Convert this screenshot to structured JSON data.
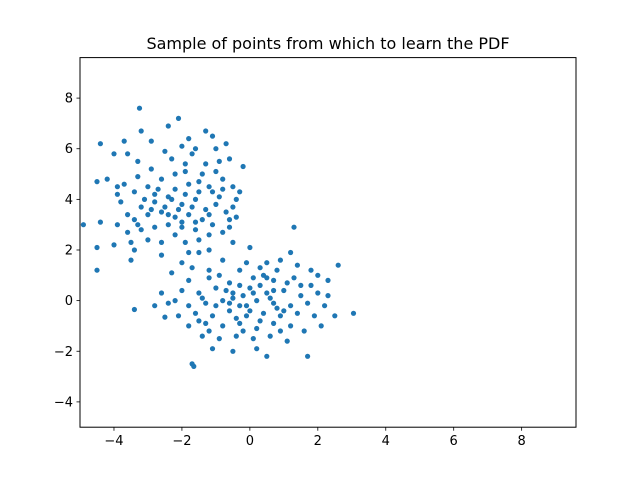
{
  "chart_data": {
    "type": "scatter",
    "title": "Sample of points from which to learn the PDF",
    "xlabel": "",
    "ylabel": "",
    "xlim": [
      -5,
      9.6
    ],
    "ylim": [
      -5,
      9.6
    ],
    "xticks": [
      -4,
      -2,
      0,
      2,
      4,
      6,
      8
    ],
    "yticks": [
      -4,
      -2,
      0,
      2,
      4,
      6,
      8
    ],
    "grid": false,
    "color": "#1f77b4",
    "series": [
      {
        "points": [
          [
            -3.25,
            7.6
          ],
          [
            -2.1,
            7.2
          ],
          [
            -3.2,
            6.7
          ],
          [
            -1.3,
            6.7
          ],
          [
            -1.8,
            6.4
          ],
          [
            -2.4,
            6.9
          ],
          [
            -4.4,
            6.2
          ],
          [
            -3.7,
            6.3
          ],
          [
            -2.9,
            6.3
          ],
          [
            -1.1,
            6.5
          ],
          [
            -0.2,
            5.3
          ],
          [
            -3.6,
            5.8
          ],
          [
            -4.0,
            5.8
          ],
          [
            -4.5,
            4.7
          ],
          [
            -3.3,
            5.5
          ],
          [
            -2.5,
            5.9
          ],
          [
            -1.7,
            5.8
          ],
          [
            -0.6,
            5.6
          ],
          [
            -0.5,
            4.5
          ],
          [
            -4.2,
            4.8
          ],
          [
            -3.9,
            4.2
          ],
          [
            -3.3,
            4.9
          ],
          [
            -2.9,
            5.2
          ],
          [
            -2.3,
            5.6
          ],
          [
            -1.9,
            5.4
          ],
          [
            -1.4,
            5.0
          ],
          [
            -1.0,
            5.1
          ],
          [
            -0.8,
            4.8
          ],
          [
            -3.8,
            3.9
          ],
          [
            -3.4,
            4.3
          ],
          [
            -3.0,
            4.5
          ],
          [
            -2.6,
            4.8
          ],
          [
            -2.2,
            4.4
          ],
          [
            -1.8,
            4.6
          ],
          [
            -1.5,
            4.3
          ],
          [
            -1.2,
            4.5
          ],
          [
            -0.9,
            4.1
          ],
          [
            -3.6,
            3.4
          ],
          [
            -3.2,
            3.7
          ],
          [
            -2.8,
            3.9
          ],
          [
            -2.4,
            4.1
          ],
          [
            -2.0,
            3.8
          ],
          [
            -1.6,
            4.0
          ],
          [
            -1.3,
            3.6
          ],
          [
            -1.0,
            3.8
          ],
          [
            -0.7,
            3.5
          ],
          [
            -4.4,
            3.1
          ],
          [
            -3.9,
            3.0
          ],
          [
            -3.4,
            3.2
          ],
          [
            -3.0,
            3.4
          ],
          [
            -2.6,
            3.5
          ],
          [
            -2.2,
            3.3
          ],
          [
            -1.8,
            3.4
          ],
          [
            -1.4,
            3.2
          ],
          [
            -1.1,
            3.0
          ],
          [
            -0.6,
            3.2
          ],
          [
            -0.4,
            3.3
          ],
          [
            -3.6,
            2.7
          ],
          [
            -3.2,
            2.8
          ],
          [
            -2.8,
            2.9
          ],
          [
            -2.4,
            3.0
          ],
          [
            -2.0,
            2.9
          ],
          [
            -1.6,
            2.8
          ],
          [
            -1.2,
            2.6
          ],
          [
            -0.8,
            2.7
          ],
          [
            -3.5,
            2.3
          ],
          [
            -3.0,
            2.4
          ],
          [
            -2.6,
            2.3
          ],
          [
            -2.2,
            2.6
          ],
          [
            -1.9,
            2.3
          ],
          [
            -1.5,
            2.4
          ],
          [
            -0.5,
            2.3
          ],
          [
            -4.0,
            2.2
          ],
          [
            -3.4,
            2.0
          ],
          [
            -2.6,
            1.8
          ],
          [
            -1.8,
            1.9
          ],
          [
            -1.2,
            2.0
          ],
          [
            -3.5,
            1.6
          ],
          [
            -2.8,
            4.2
          ],
          [
            -2.5,
            3.7
          ],
          [
            -2.1,
            3.6
          ],
          [
            -1.7,
            3.7
          ],
          [
            -1.9,
            4.2
          ],
          [
            -2.3,
            4.0
          ],
          [
            -2.7,
            4.4
          ],
          [
            -1.5,
            4.7
          ],
          [
            -1.1,
            4.3
          ],
          [
            -0.8,
            4.4
          ],
          [
            -3.1,
            4.0
          ],
          [
            -2.9,
            3.6
          ],
          [
            -2.4,
            3.4
          ],
          [
            -2.0,
            3.1
          ],
          [
            -1.6,
            3.1
          ],
          [
            -1.2,
            3.4
          ],
          [
            -2.2,
            5.0
          ],
          [
            -1.9,
            5.1
          ],
          [
            -1.3,
            5.4
          ],
          [
            -0.9,
            5.5
          ],
          [
            -4.9,
            3.0
          ],
          [
            -4.5,
            2.1
          ],
          [
            -4.5,
            1.2
          ],
          [
            -3.3,
            3.0
          ],
          [
            -0.3,
            4.3
          ],
          [
            -0.4,
            4.0
          ],
          [
            -0.5,
            3.7
          ],
          [
            -3.9,
            4.5
          ],
          [
            -3.7,
            4.6
          ],
          [
            -2.0,
            6.1
          ],
          [
            -1.6,
            6.0
          ],
          [
            -1.0,
            6.0
          ],
          [
            -0.7,
            6.2
          ],
          [
            -0.6,
            2.9
          ],
          [
            1.3,
            2.9
          ],
          [
            1.2,
            1.9
          ],
          [
            2.6,
            1.4
          ],
          [
            0.0,
            2.1
          ],
          [
            0.5,
            1.5
          ],
          [
            -0.8,
            1.6
          ],
          [
            -1.5,
            1.9
          ],
          [
            -2.0,
            1.5
          ],
          [
            -1.2,
            1.2
          ],
          [
            -0.3,
            1.2
          ],
          [
            0.3,
            1.3
          ],
          [
            0.8,
            1.2
          ],
          [
            1.4,
            1.4
          ],
          [
            2.0,
            1.0
          ],
          [
            -2.3,
            1.1
          ],
          [
            -1.8,
            0.8
          ],
          [
            -1.2,
            0.9
          ],
          [
            -0.6,
            0.7
          ],
          [
            0.1,
            0.9
          ],
          [
            0.7,
            0.8
          ],
          [
            1.3,
            0.9
          ],
          [
            1.8,
            0.6
          ],
          [
            2.3,
            0.8
          ],
          [
            -2.6,
            0.3
          ],
          [
            -2.0,
            0.4
          ],
          [
            -1.5,
            0.3
          ],
          [
            -1.0,
            0.5
          ],
          [
            -0.5,
            0.3
          ],
          [
            0.0,
            0.5
          ],
          [
            0.5,
            0.3
          ],
          [
            1.0,
            0.4
          ],
          [
            1.5,
            0.2
          ],
          [
            2.0,
            0.3
          ],
          [
            -2.4,
            -0.1
          ],
          [
            -1.8,
            -0.2
          ],
          [
            -1.3,
            -0.1
          ],
          [
            -0.8,
            0.0
          ],
          [
            -0.3,
            -0.2
          ],
          [
            0.2,
            0.0
          ],
          [
            0.7,
            -0.1
          ],
          [
            1.2,
            -0.2
          ],
          [
            1.7,
            -0.1
          ],
          [
            2.2,
            -0.2
          ],
          [
            -2.1,
            -0.6
          ],
          [
            -1.6,
            -0.5
          ],
          [
            -1.1,
            -0.6
          ],
          [
            -0.6,
            -0.4
          ],
          [
            -0.1,
            -0.6
          ],
          [
            0.4,
            -0.5
          ],
          [
            0.9,
            -0.6
          ],
          [
            1.4,
            -0.5
          ],
          [
            1.9,
            -0.6
          ],
          [
            -1.8,
            -1.0
          ],
          [
            -1.3,
            -0.9
          ],
          [
            -0.8,
            -1.0
          ],
          [
            -0.3,
            -0.9
          ],
          [
            0.2,
            -1.1
          ],
          [
            0.7,
            -0.9
          ],
          [
            1.2,
            -1.0
          ],
          [
            1.6,
            -1.2
          ],
          [
            -1.4,
            -1.4
          ],
          [
            -0.9,
            -1.5
          ],
          [
            -0.4,
            -1.4
          ],
          [
            0.1,
            -1.5
          ],
          [
            0.6,
            -1.4
          ],
          [
            1.1,
            -1.6
          ],
          [
            -1.1,
            -1.9
          ],
          [
            -0.5,
            -2.0
          ],
          [
            0.2,
            -1.9
          ],
          [
            0.5,
            -2.2
          ],
          [
            1.7,
            -2.2
          ],
          [
            -1.7,
            -2.5
          ],
          [
            -1.65,
            -2.6
          ],
          [
            3.05,
            -0.5
          ],
          [
            -3.4,
            -0.35
          ],
          [
            -2.5,
            -0.65
          ],
          [
            -0.2,
            0.2
          ],
          [
            0.3,
            0.6
          ],
          [
            -0.7,
            0.4
          ],
          [
            0.8,
            -0.3
          ],
          [
            -0.4,
            -0.7
          ],
          [
            0.5,
            0.9
          ],
          [
            -0.1,
            -0.2
          ],
          [
            0.1,
            0.3
          ],
          [
            -0.5,
            0.1
          ],
          [
            0.6,
            0.1
          ],
          [
            1.1,
            0.7
          ],
          [
            -1.0,
            -0.2
          ],
          [
            -0.2,
            -1.2
          ],
          [
            0.9,
            -1.2
          ],
          [
            -1.5,
            -0.8
          ],
          [
            1.5,
            0.6
          ],
          [
            -0.9,
            1.0
          ],
          [
            0.4,
            1.0
          ],
          [
            1.8,
            1.2
          ],
          [
            2.3,
            0.2
          ],
          [
            2.5,
            -0.6
          ],
          [
            -2.2,
            0.0
          ],
          [
            -1.2,
            -1.2
          ],
          [
            0.0,
            -0.4
          ],
          [
            0.3,
            -0.8
          ],
          [
            -0.3,
            0.6
          ],
          [
            -0.6,
            -0.1
          ],
          [
            0.7,
            0.4
          ],
          [
            1.0,
            -0.4
          ],
          [
            -1.4,
            0.1
          ],
          [
            2.1,
            -1.0
          ],
          [
            -2.8,
            -0.2
          ],
          [
            -0.1,
            1.5
          ],
          [
            0.9,
            1.6
          ],
          [
            -1.7,
            1.3
          ]
        ]
      }
    ]
  }
}
